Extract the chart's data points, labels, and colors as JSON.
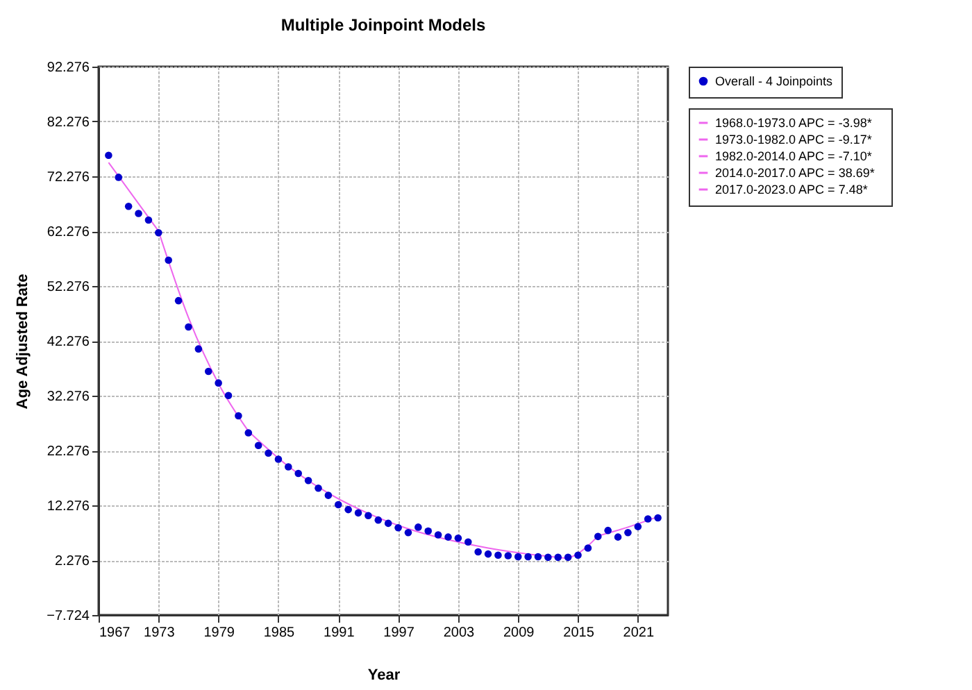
{
  "chart_data": {
    "type": "scatter",
    "title": "Multiple Joinpoint Models",
    "xlabel": "Year",
    "ylabel": "Age Adjusted Rate",
    "xlim": [
      1967,
      2024
    ],
    "ylim": [
      -7.724,
      92.276
    ],
    "xticks": [
      1967,
      1973,
      1979,
      1985,
      1991,
      1997,
      2003,
      2009,
      2015,
      2021
    ],
    "yticks": [
      -7.724,
      2.276,
      12.276,
      22.276,
      32.276,
      42.276,
      52.276,
      62.276,
      72.276,
      82.276,
      92.276
    ],
    "grid": true,
    "legend": "top right",
    "series": [
      {
        "name": "Overall - 4 Joinpoints",
        "type": "scatter",
        "marker": "circle",
        "color": "#0000cc",
        "x": [
          1968,
          1969,
          1970,
          1971,
          1972,
          1973,
          1974,
          1975,
          1976,
          1977,
          1978,
          1979,
          1980,
          1981,
          1982,
          1983,
          1984,
          1985,
          1986,
          1987,
          1988,
          1989,
          1990,
          1991,
          1992,
          1993,
          1994,
          1995,
          1996,
          1997,
          1998,
          1999,
          2000,
          2001,
          2002,
          2003,
          2004,
          2005,
          2006,
          2007,
          2008,
          2009,
          2010,
          2011,
          2012,
          2013,
          2014,
          2015,
          2016,
          2017,
          2018,
          2019,
          2020,
          2021,
          2022,
          2023
        ],
        "values": [
          76.1,
          72.1,
          66.8,
          65.5,
          64.3,
          62.0,
          57.0,
          49.6,
          44.8,
          40.8,
          36.7,
          34.6,
          32.3,
          28.6,
          25.5,
          23.2,
          21.8,
          20.7,
          19.3,
          18.1,
          16.8,
          15.4,
          14.1,
          12.4,
          11.5,
          10.9,
          10.4,
          9.6,
          9.0,
          8.2,
          7.3,
          8.3,
          7.6,
          6.9,
          6.5,
          6.3,
          5.6,
          3.8,
          3.4,
          3.2,
          3.1,
          2.9,
          2.9,
          2.9,
          2.8,
          2.8,
          2.8,
          3.2,
          4.5,
          6.6,
          7.7,
          6.5,
          7.3,
          8.4,
          9.8,
          10.0
        ]
      },
      {
        "name": "1968.0-1973.0 APC  =  -3.98*",
        "type": "line",
        "color": "#ee66ee",
        "x": [
          1968,
          1973
        ],
        "values": [
          74.8,
          62.3
        ]
      },
      {
        "name": "1973.0-1982.0 APC  =  -9.17*",
        "type": "line",
        "color": "#ee66ee",
        "x": [
          1973,
          1976,
          1979,
          1982
        ],
        "values": [
          62.3,
          46.5,
          34.5,
          25.8
        ]
      },
      {
        "name": "1982.0-2014.0 APC  =  -7.10*",
        "type": "line",
        "color": "#ee66ee",
        "x": [
          1982,
          1986,
          1990,
          1994,
          1998,
          2002,
          2006,
          2010,
          2014
        ],
        "values": [
          25.8,
          19.4,
          14.5,
          10.8,
          8.0,
          6.0,
          4.5,
          3.4,
          2.6
        ]
      },
      {
        "name": "2014.0-2017.0 APC  =  38.69*",
        "type": "line",
        "color": "#ee66ee",
        "x": [
          2014,
          2015,
          2016,
          2017
        ],
        "values": [
          2.6,
          3.5,
          4.9,
          6.7
        ]
      },
      {
        "name": "2017.0-2023.0 APC  =  7.48*",
        "type": "line",
        "color": "#ee66ee",
        "x": [
          2017,
          2020,
          2023
        ],
        "values": [
          6.7,
          8.3,
          10.2
        ]
      }
    ]
  }
}
